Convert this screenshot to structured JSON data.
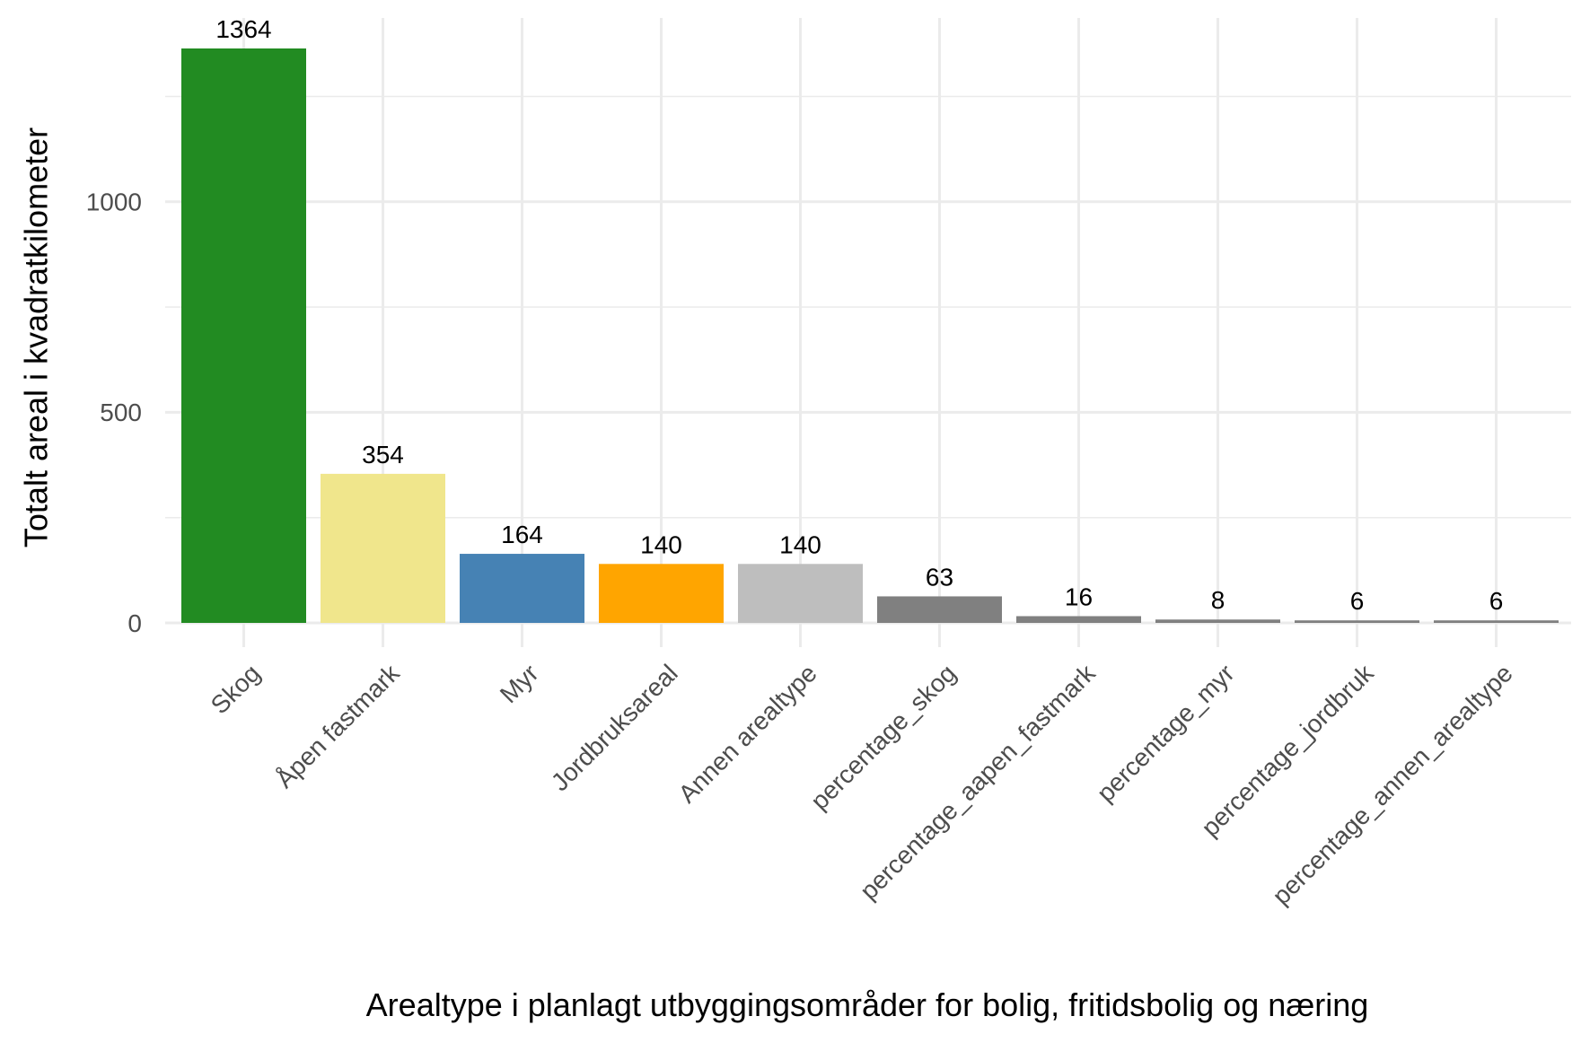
{
  "chart_data": {
    "type": "bar",
    "categories": [
      "Skog",
      "Åpen fastmark",
      "Myr",
      "Jordbruksareal",
      "Annen arealtype",
      "percentage_skog",
      "percentage_aapen_fastmark",
      "percentage_myr",
      "percentage_jordbruk",
      "percentage_annen_arealtype"
    ],
    "values": [
      1364,
      354,
      164,
      140,
      140,
      63,
      16,
      8,
      6,
      6
    ],
    "data_labels": [
      "1364",
      "354",
      "164",
      "140",
      "140",
      "63",
      "16",
      "8",
      "6",
      "6"
    ],
    "colors": [
      "#228B22",
      "#F0E68C",
      "#4682B4",
      "#FFA500",
      "#BEBEBE",
      "#808080",
      "#808080",
      "#808080",
      "#808080",
      "#808080"
    ],
    "xlabel": "Arealtype i planlagt utbyggingsområder for bolig, fritidsbolig og næring",
    "ylabel": "Totalt areal i kvadratkilometer",
    "yticks": [
      0,
      500,
      1000
    ],
    "ytick_labels": [
      "0",
      "500",
      "1000"
    ],
    "ylim": [
      0,
      1364
    ],
    "grid": true,
    "legend": "none"
  }
}
